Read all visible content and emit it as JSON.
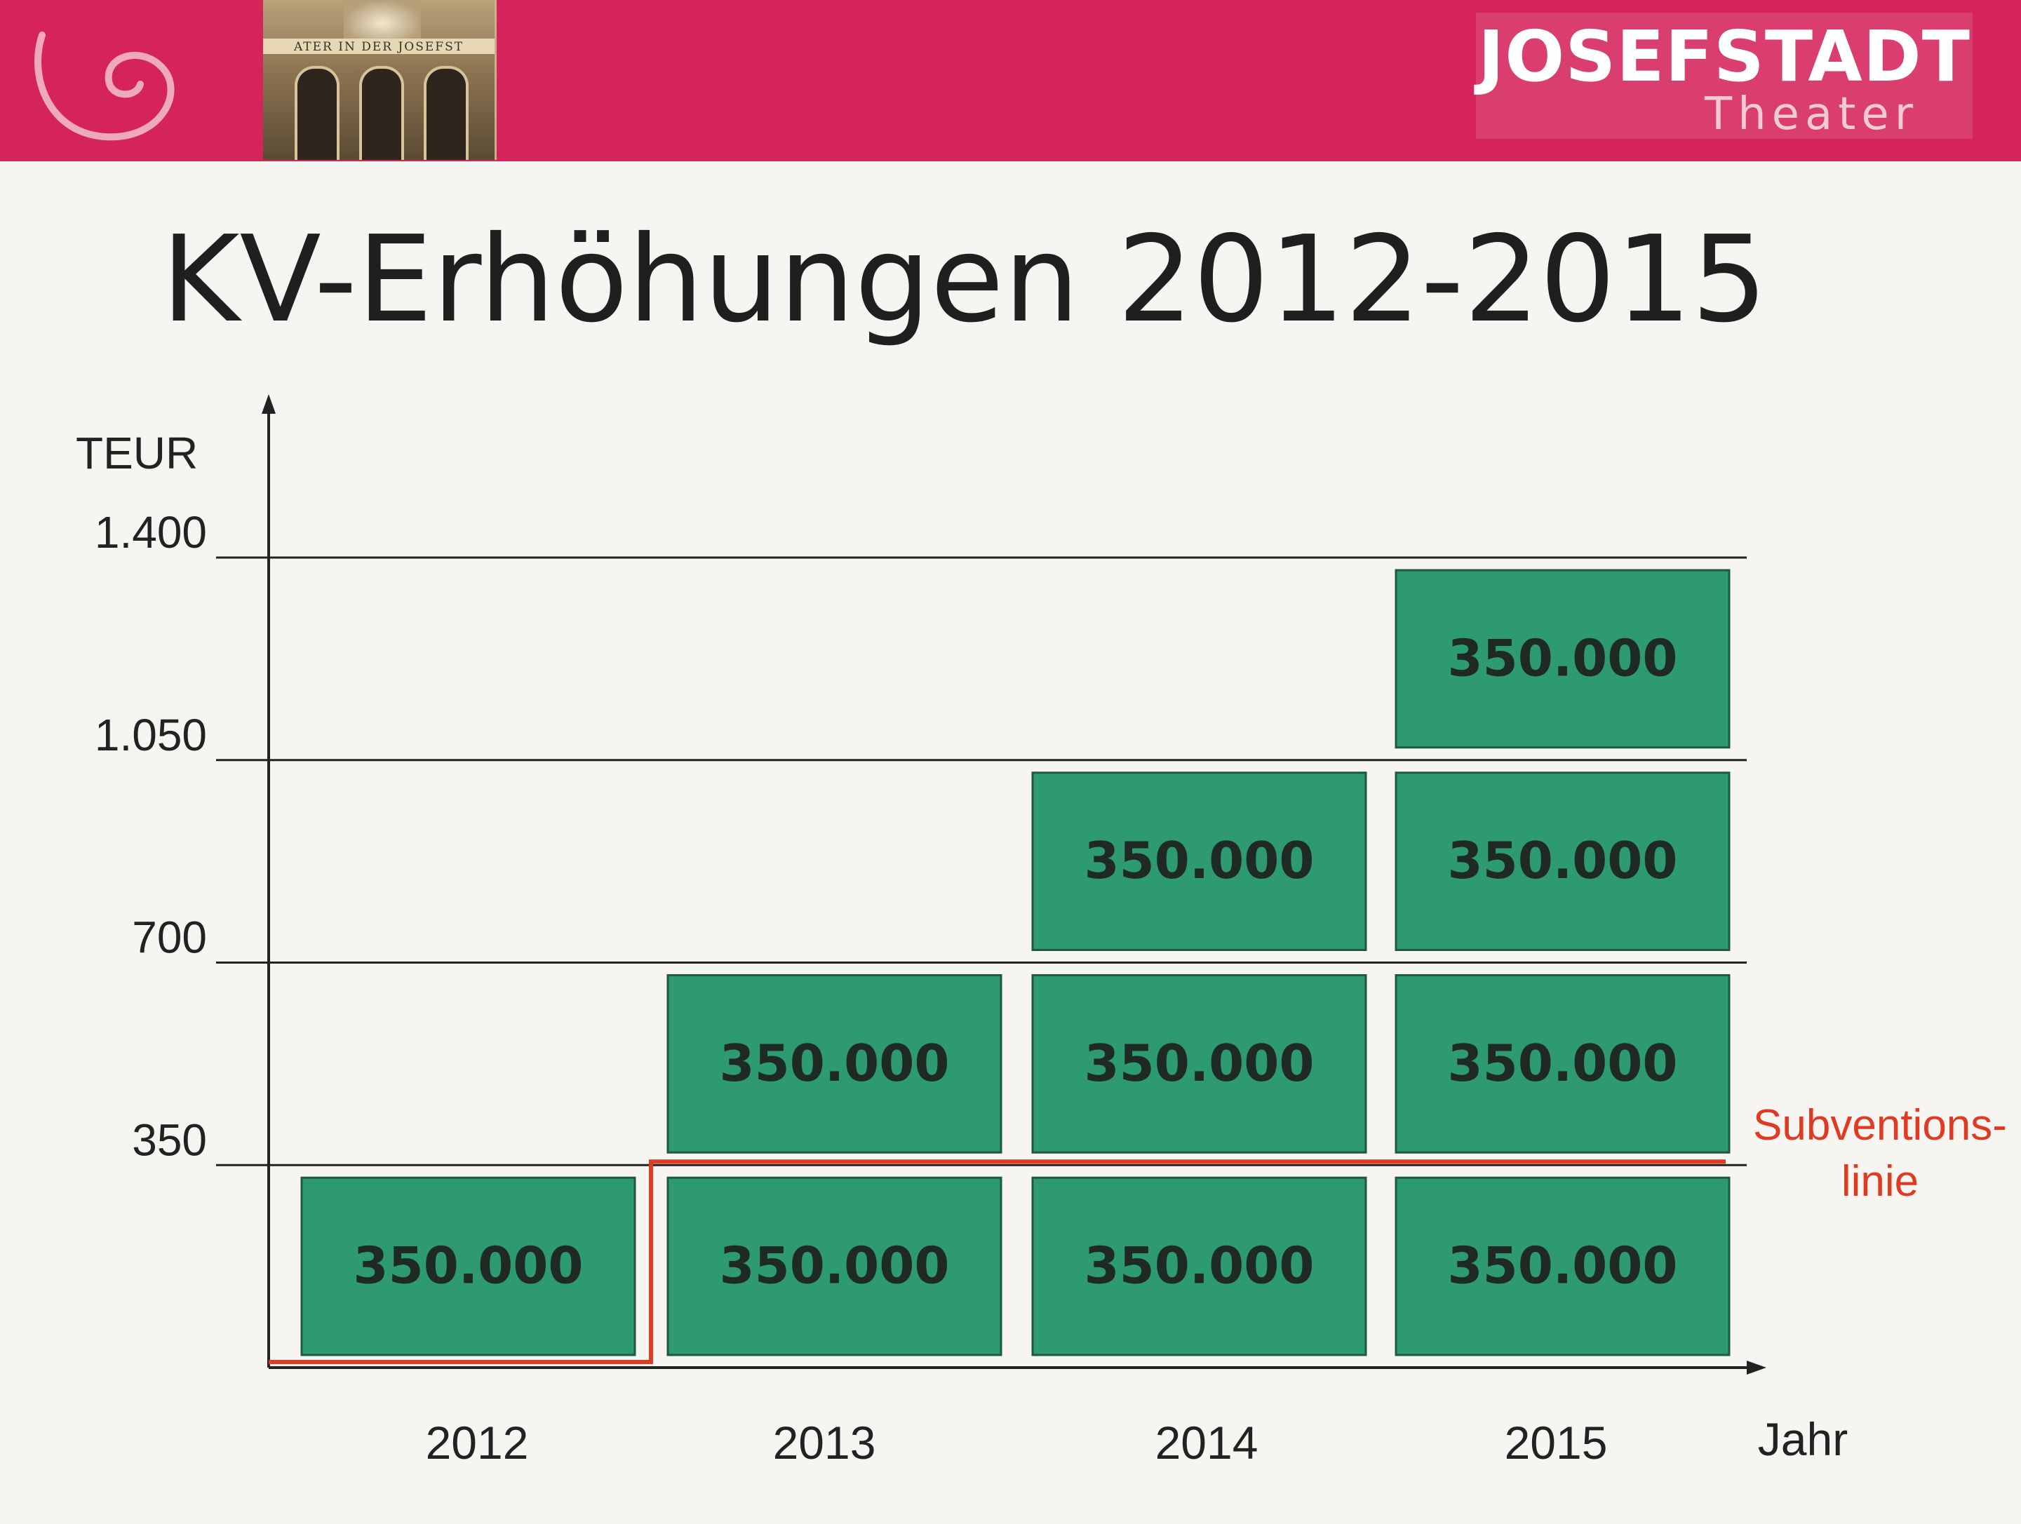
{
  "header": {
    "brand_name": "JOSEFSTADT",
    "brand_sub": "Theater",
    "photo_caption": "ATER IN DER JOSEFST",
    "colors": {
      "header_bg": "#d4245a",
      "logo_text": "#ffffff"
    }
  },
  "chart_data": {
    "type": "bar",
    "title": "KV-Erhöhungen 2012-2015",
    "ylabel": "TEUR",
    "xlabel": "Jahr",
    "ylim": [
      0,
      1400
    ],
    "yticks": [
      350,
      700,
      1050,
      1400
    ],
    "ytick_labels": [
      "350",
      "700",
      "1.050",
      "1.400"
    ],
    "categories": [
      "2012",
      "2013",
      "2014",
      "2015"
    ],
    "block_value": 350,
    "block_label": "350.000",
    "stacked_blocks": [
      1,
      2,
      3,
      4
    ],
    "totals": [
      350,
      700,
      1050,
      1400
    ],
    "annotation": {
      "text_line1": "Subventions-",
      "text_line2": "linie",
      "value": 350,
      "color": "#e03a22"
    },
    "colors": {
      "bar": "#2e9a72",
      "bar_border": "#1f5a40",
      "bar_label": "#1f2a25",
      "axis": "#222222"
    },
    "grid": true
  }
}
